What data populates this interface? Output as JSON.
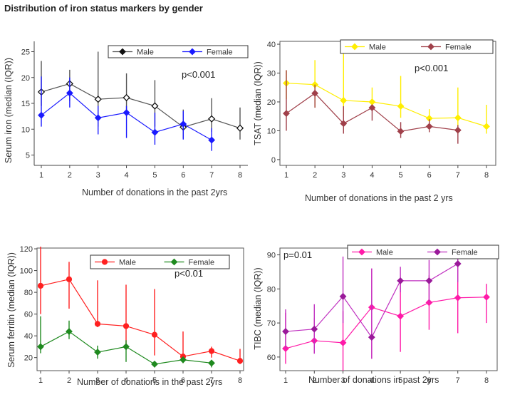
{
  "figure_title": "Distribution of iron status markers by gender",
  "chart_data": [
    {
      "id": "serum-iron",
      "type": "line",
      "title": "",
      "xlabel": "Number of donations in the past 2yrs",
      "ylabel": "Serum iron (median (IQR))",
      "annotation": "p<0.001",
      "x_ticks": [
        "1",
        "2",
        "3",
        "4",
        "5",
        "6",
        "7",
        "8"
      ],
      "y_ticks": [
        5,
        10,
        15,
        20,
        25
      ],
      "ylim": [
        3,
        27
      ],
      "legend": "top-right",
      "series": [
        {
          "name": "Male",
          "color": "#111111",
          "line_color": "#555555",
          "marker": "diamond-open",
          "x": [
            1,
            2,
            3,
            4,
            5,
            6,
            7,
            8
          ],
          "values": [
            17.2,
            18.8,
            15.8,
            16.1,
            14.5,
            10.4,
            12.0,
            10.2
          ],
          "low": [
            14.5,
            15.5,
            10.5,
            12.8,
            10.5,
            8.2,
            9.5,
            8.0
          ],
          "high": [
            23.2,
            21.5,
            25.0,
            20.8,
            19.5,
            13.8,
            16.0,
            14.2
          ]
        },
        {
          "name": "Female",
          "color": "#1a1aff",
          "line_color": "#1a1aff",
          "marker": "diamond",
          "x": [
            1,
            2,
            3,
            4,
            5,
            6,
            7
          ],
          "values": [
            12.7,
            17.0,
            12.2,
            13.2,
            9.4,
            11.0,
            7.9
          ],
          "low": [
            10.5,
            14.2,
            9.0,
            8.3,
            7.0,
            8.0,
            5.8
          ],
          "high": [
            20.2,
            20.0,
            14.5,
            14.5,
            13.2,
            13.5,
            10.2
          ]
        }
      ]
    },
    {
      "id": "tsat",
      "type": "line",
      "title": "",
      "xlabel": "Number of donations in the past 2 yrs",
      "ylabel": "TSAT (median (IQR))",
      "annotation": "p<0.001",
      "x_ticks": [
        "1",
        "2",
        "3",
        "4",
        "5",
        "6",
        "7",
        "8"
      ],
      "y_ticks": [
        0,
        10,
        20,
        30,
        40
      ],
      "ylim": [
        -2,
        41
      ],
      "legend": "top-right",
      "series": [
        {
          "name": "Male",
          "color": "#ffee00",
          "line_color": "#ffee00",
          "marker": "diamond",
          "x": [
            1,
            2,
            3,
            4,
            5,
            6,
            7,
            8
          ],
          "values": [
            26.5,
            26.0,
            20.5,
            20.0,
            18.5,
            14.3,
            14.5,
            11.5
          ],
          "low": [
            21.0,
            18.0,
            15.0,
            18.0,
            14.5,
            12.0,
            9.0,
            9.0
          ],
          "high": [
            31.0,
            34.5,
            38.0,
            25.0,
            29.0,
            17.5,
            25.0,
            19.0
          ]
        },
        {
          "name": "Female",
          "color": "#a0404a",
          "line_color": "#a0404a",
          "marker": "diamond",
          "x": [
            1,
            2,
            3,
            4,
            5,
            6,
            7
          ],
          "values": [
            16.0,
            23.0,
            12.5,
            18.0,
            9.8,
            11.5,
            10.2
          ],
          "low": [
            10.0,
            18.0,
            9.0,
            13.5,
            7.5,
            9.5,
            5.5
          ],
          "high": [
            31.0,
            26.0,
            18.5,
            18.5,
            13.0,
            14.0,
            12.0
          ]
        }
      ]
    },
    {
      "id": "serum-ferritin",
      "type": "line",
      "title": "",
      "xlabel": "Number of donations in the past 2yrs",
      "ylabel": "Serum ferritin (median (IQR))",
      "annotation": "p<0.01",
      "x_ticks": [
        "1",
        "2",
        "3",
        "4",
        "5",
        "6",
        "7",
        "8"
      ],
      "y_ticks": [
        20,
        40,
        60,
        80,
        100,
        120
      ],
      "ylim": [
        8,
        122
      ],
      "legend": "top-right",
      "series": [
        {
          "name": "Male",
          "color": "#ff2020",
          "line_color": "#ff2020",
          "marker": "circle",
          "x": [
            1,
            2,
            3,
            4,
            5,
            6,
            7,
            8
          ],
          "values": [
            86,
            92,
            51,
            49,
            41,
            21,
            26,
            17
          ],
          "low": [
            60,
            65,
            48,
            30,
            22,
            15,
            20,
            14
          ],
          "high": [
            122,
            108,
            91,
            87,
            83,
            44,
            30,
            28
          ]
        },
        {
          "name": "Female",
          "color": "#1f8a1f",
          "line_color": "#1f8a1f",
          "marker": "diamond",
          "x": [
            1,
            2,
            3,
            4,
            5,
            6,
            7
          ],
          "values": [
            30,
            44,
            25,
            30,
            14,
            18,
            15
          ],
          "low": [
            24,
            37,
            19,
            16,
            11,
            15,
            11
          ],
          "high": [
            58,
            54,
            31,
            36,
            16,
            20,
            17
          ]
        }
      ]
    },
    {
      "id": "tibc",
      "type": "line",
      "title": "",
      "xlabel": "Number of donations in past 2yrs",
      "ylabel": "TIBC (median (IQR))",
      "annotation": "p=0.01",
      "x_ticks": [
        "1",
        "2",
        "3",
        "4",
        "5",
        "6",
        "7",
        "8"
      ],
      "y_ticks": [
        60,
        70,
        80,
        90
      ],
      "ylim": [
        56,
        92
      ],
      "legend": "top-right",
      "series": [
        {
          "name": "Male",
          "color": "#ff1aa8",
          "line_color": "#ff1aa8",
          "marker": "diamond",
          "x": [
            1,
            2,
            3,
            4,
            5,
            6,
            7,
            8
          ],
          "values": [
            62.5,
            64.8,
            64.2,
            74.6,
            72.0,
            76.0,
            77.4,
            77.6
          ],
          "low": [
            58.0,
            61.0,
            56.0,
            59.5,
            61.5,
            68.0,
            67.0,
            70.0
          ],
          "high": [
            73.0,
            71.5,
            73.5,
            86.0,
            82.0,
            84.0,
            89.0,
            81.5
          ]
        },
        {
          "name": "Female",
          "color": "#9a1a9a",
          "line_color": "#c030c0",
          "marker": "diamond",
          "x": [
            1,
            2,
            3,
            4,
            5,
            6,
            7
          ],
          "values": [
            67.5,
            68.2,
            77.8,
            65.8,
            82.4,
            82.4,
            87.4
          ],
          "low": [
            62.5,
            61.0,
            70.0,
            59.5,
            79.0,
            76.0,
            82.0
          ],
          "high": [
            74.0,
            75.5,
            89.5,
            86.0,
            86.5,
            88.5,
            91.0
          ]
        }
      ]
    }
  ]
}
